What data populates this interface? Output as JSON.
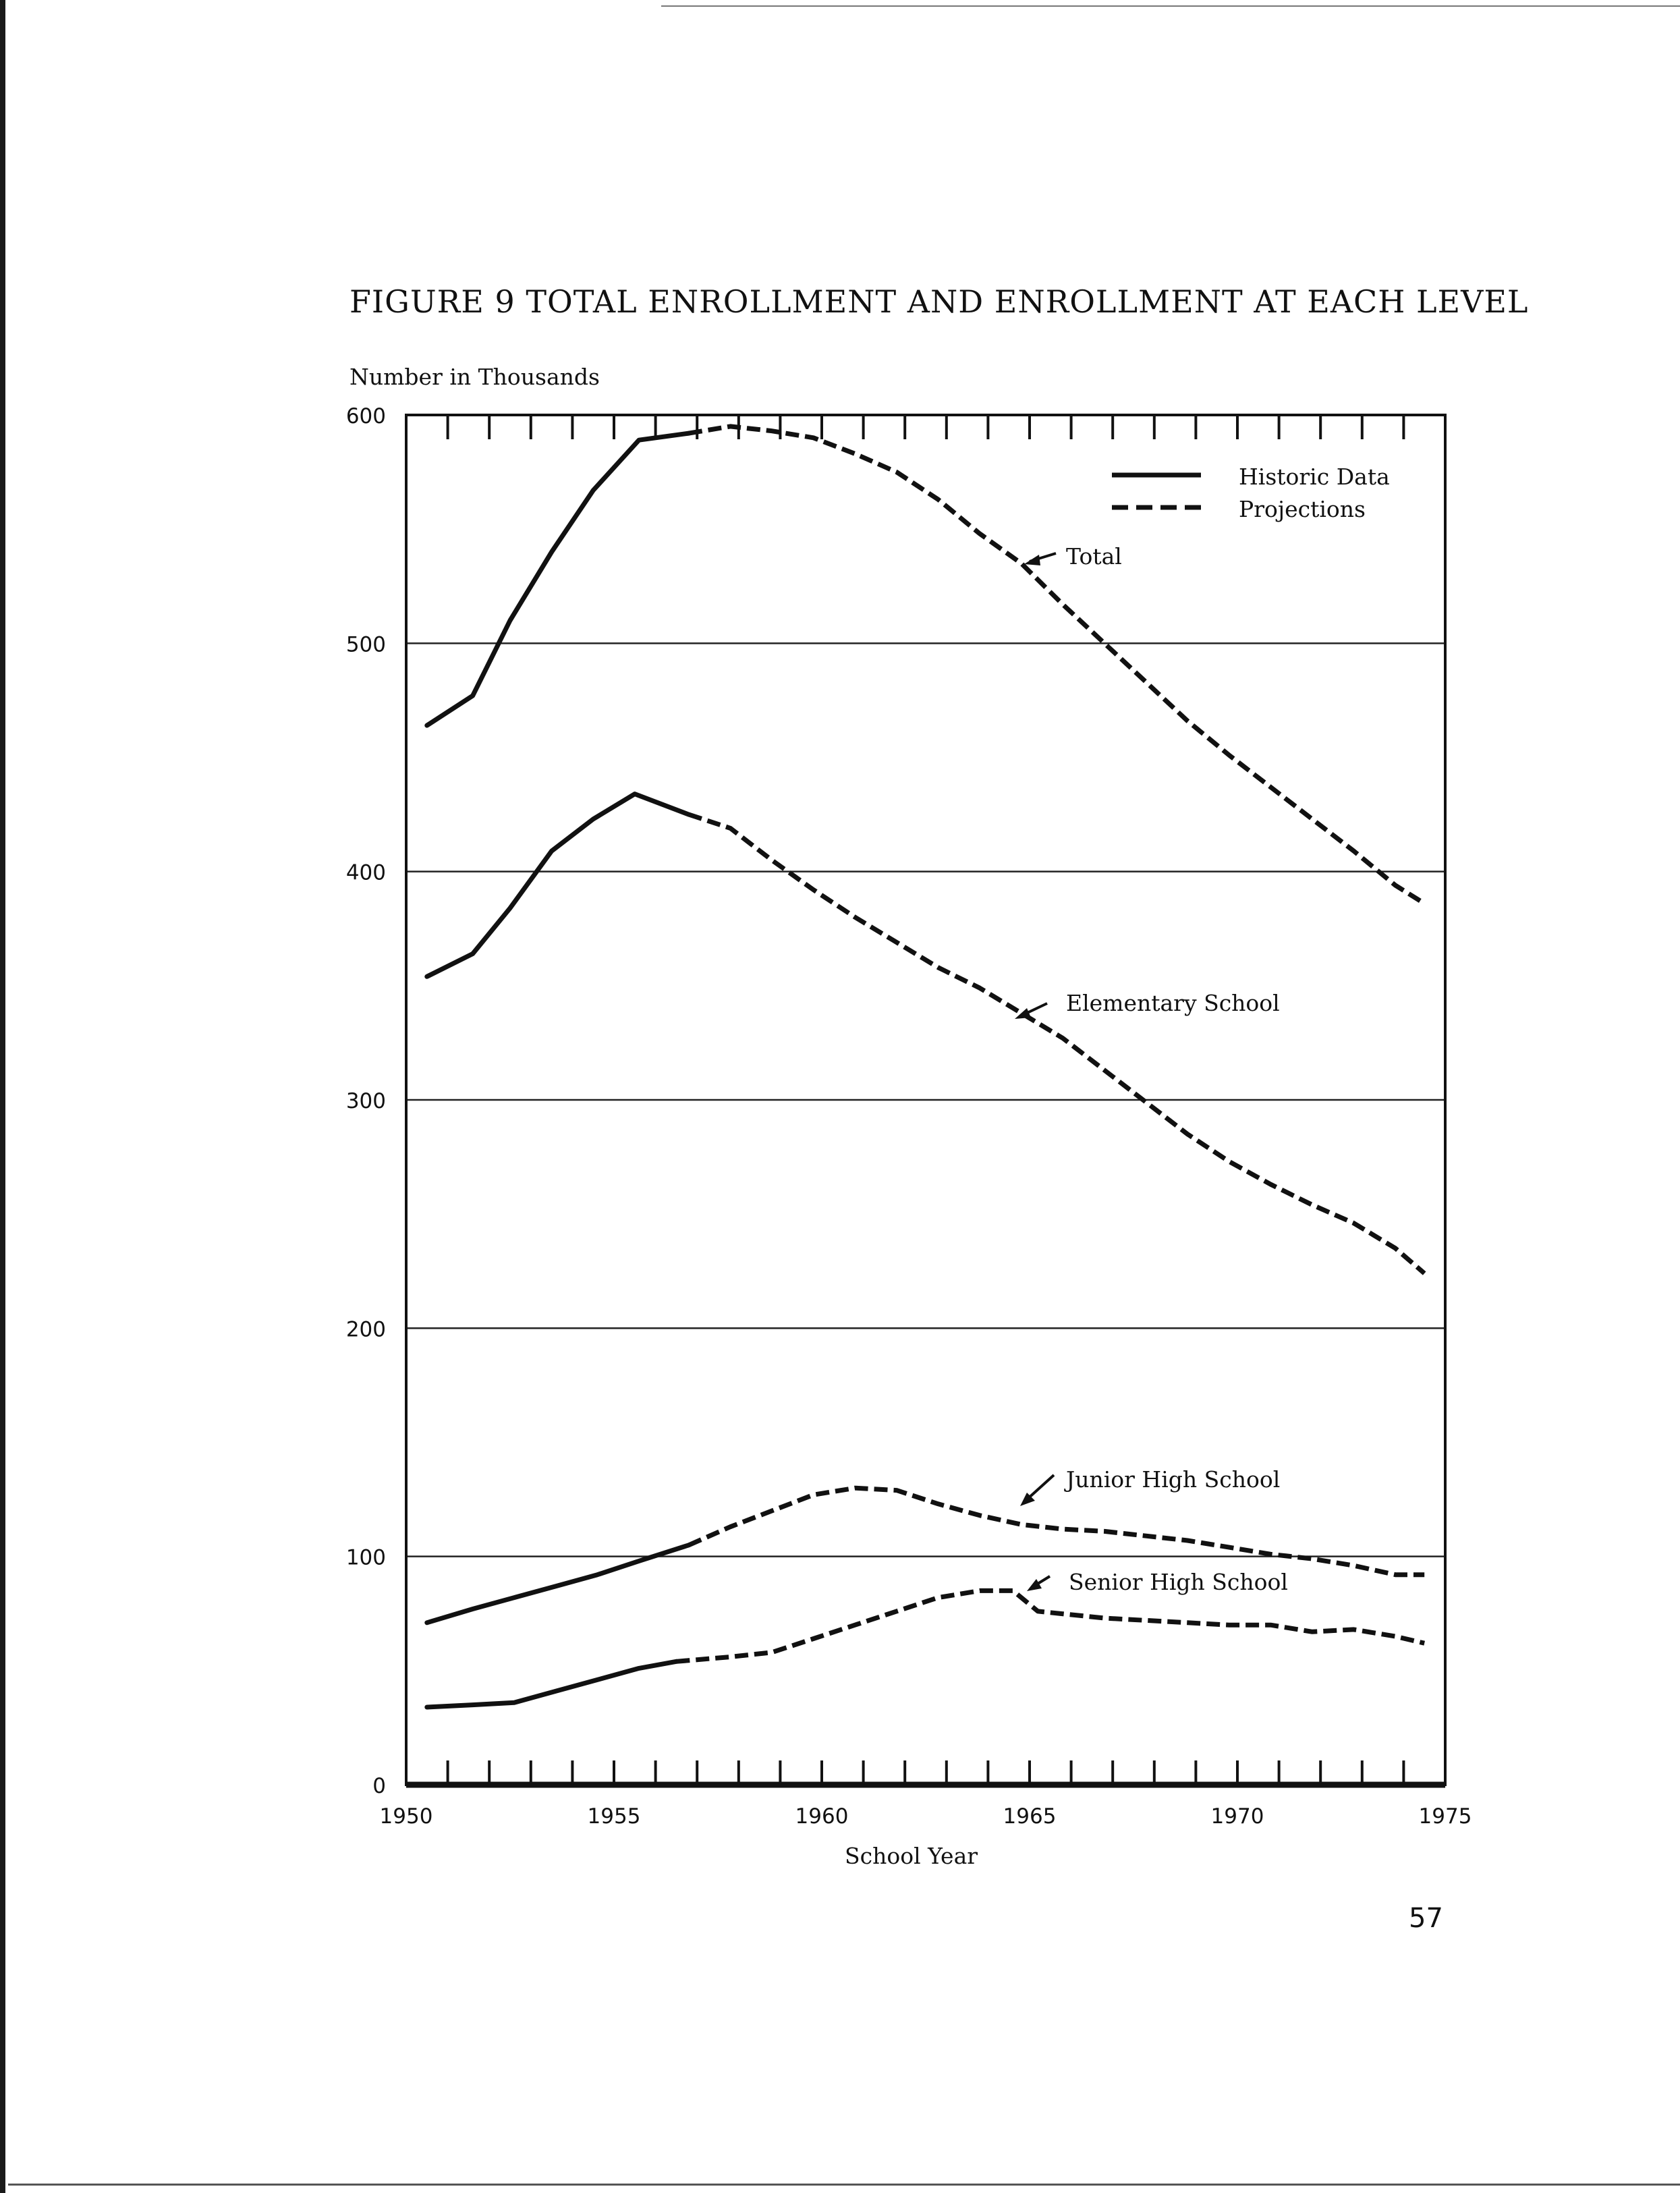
{
  "page": {
    "figure_title": "FIGURE   9  TOTAL ENROLLMENT AND ENROLLMENT AT EACH LEVEL",
    "page_number": "57"
  },
  "colors": {
    "ink": "#111111",
    "paper": "#ffffff",
    "grid": "#222222"
  },
  "chart_data": {
    "type": "line",
    "title": "FIGURE 9 TOTAL ENROLLMENT AND ENROLLMENT AT EACH LEVEL",
    "ylabel": "Number in Thousands",
    "xlabel": "School Year",
    "xlim": [
      1950,
      1975
    ],
    "ylim": [
      0,
      600
    ],
    "x_ticks": [
      "1950",
      "1955",
      "1960",
      "1965",
      "1970",
      "1975"
    ],
    "y_ticks": [
      "0",
      "100",
      "200",
      "300",
      "400",
      "500",
      "600"
    ],
    "grid": "horizontal",
    "legend": {
      "placement": "top-right",
      "entries": [
        {
          "label": "Historic Data",
          "style": "solid"
        },
        {
          "label": "Projections",
          "style": "dashed"
        }
      ]
    },
    "series": [
      {
        "name": "Total",
        "historic": {
          "x": [
            1950.5,
            1951.6,
            1952.5,
            1953.5,
            1954.5,
            1955.6,
            1956.8
          ],
          "y": [
            464,
            477,
            510,
            540,
            567,
            589,
            592
          ]
        },
        "projection": {
          "x": [
            1956.8,
            1957.8,
            1958.8,
            1959.8,
            1960.8,
            1961.8,
            1962.8,
            1963.8,
            1964.8,
            1965.8,
            1966.8,
            1967.8,
            1968.8,
            1969.8,
            1970.8,
            1971.8,
            1972.8,
            1973.8,
            1974.5
          ],
          "y": [
            592,
            595,
            593,
            590,
            583,
            575,
            563,
            548,
            535,
            517,
            500,
            483,
            466,
            451,
            437,
            423,
            409,
            394,
            386
          ]
        }
      },
      {
        "name": "Elementary School",
        "historic": {
          "x": [
            1950.5,
            1951.6,
            1952.5,
            1953.5,
            1954.5,
            1955.5,
            1956.8
          ],
          "y": [
            354,
            364,
            384,
            409,
            423,
            434,
            425
          ]
        },
        "projection": {
          "x": [
            1956.8,
            1957.8,
            1958.8,
            1959.8,
            1960.8,
            1961.8,
            1962.8,
            1963.8,
            1964.8,
            1965.8,
            1966.8,
            1967.8,
            1968.8,
            1969.8,
            1970.8,
            1971.8,
            1972.8,
            1973.8,
            1974.5
          ],
          "y": [
            425,
            419,
            405,
            392,
            380,
            369,
            358,
            349,
            338,
            327,
            313,
            299,
            285,
            273,
            263,
            254,
            246,
            235,
            224
          ]
        }
      },
      {
        "name": "Junior High School",
        "historic": {
          "x": [
            1950.5,
            1951.6,
            1952.6,
            1953.6,
            1954.6,
            1955.6,
            1956.8
          ],
          "y": [
            71,
            77,
            82,
            87,
            92,
            98,
            105
          ]
        },
        "projection": {
          "x": [
            1956.8,
            1957.8,
            1958.8,
            1959.8,
            1960.8,
            1961.8,
            1962.8,
            1963.8,
            1964.8,
            1965.8,
            1966.8,
            1967.8,
            1968.8,
            1969.8,
            1970.8,
            1971.8,
            1972.8,
            1973.8,
            1974.5
          ],
          "y": [
            105,
            113,
            120,
            127,
            130,
            129,
            123,
            118,
            114,
            112,
            111,
            109,
            107,
            104,
            101,
            99,
            96,
            92,
            92
          ]
        }
      },
      {
        "name": "Senior High School",
        "historic": {
          "x": [
            1950.5,
            1951.6,
            1952.6,
            1953.6,
            1954.6,
            1955.6,
            1956.5
          ],
          "y": [
            34,
            35,
            36,
            41,
            46,
            51,
            54
          ]
        },
        "projection": {
          "x": [
            1956.5,
            1957.8,
            1958.8,
            1959.8,
            1960.8,
            1961.8,
            1962.8,
            1963.8,
            1964.6,
            1965.2,
            1966.8,
            1967.8,
            1968.8,
            1969.8,
            1970.8,
            1971.8,
            1972.8,
            1973.8,
            1974.5
          ],
          "y": [
            54,
            56,
            58,
            64,
            70,
            76,
            82,
            85,
            85,
            76,
            73,
            72,
            71,
            70,
            70,
            67,
            68,
            65,
            62
          ]
        }
      }
    ],
    "annotations": [
      {
        "text": "Total",
        "series": "Total"
      },
      {
        "text": "Elementary School",
        "series": "Elementary School"
      },
      {
        "text": "Junior High School",
        "series": "Junior High School"
      },
      {
        "text": "Senior High School",
        "series": "Senior High School"
      }
    ]
  }
}
